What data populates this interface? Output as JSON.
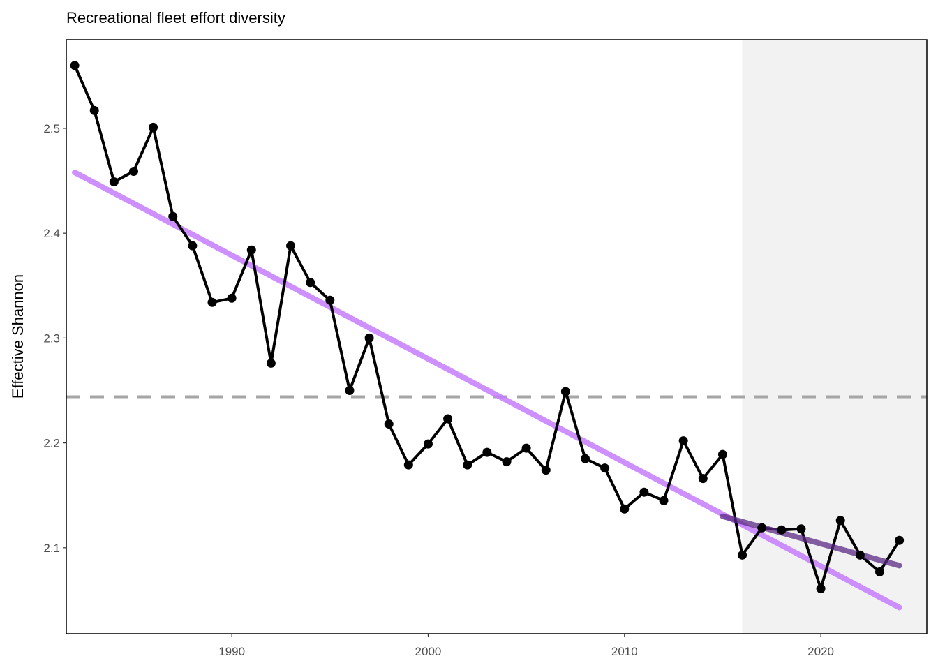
{
  "chart_data": {
    "type": "line",
    "title": "Recreational fleet effort diversity",
    "xlabel": "",
    "ylabel": "Effective Shannon",
    "xlim": [
      1981.57,
      2025.4
    ],
    "ylim": [
      2.018,
      2.5845
    ],
    "x_ticks": [
      1990,
      2000,
      2010,
      2020
    ],
    "y_ticks": [
      2.1,
      2.2,
      2.3,
      2.4,
      2.5
    ],
    "y_tick_labels": [
      "2.1",
      "2.2",
      "2.3",
      "2.4",
      "2.5"
    ],
    "x_tick_labels": [
      "1990",
      "2000",
      "2010",
      "2020"
    ],
    "grid": false,
    "x": [
      1982,
      1983,
      1984,
      1985,
      1986,
      1987,
      1988,
      1989,
      1990,
      1991,
      1992,
      1993,
      1994,
      1995,
      1996,
      1997,
      1998,
      1999,
      2000,
      2001,
      2002,
      2003,
      2004,
      2005,
      2006,
      2007,
      2008,
      2009,
      2010,
      2011,
      2012,
      2013,
      2014,
      2015,
      2016,
      2017,
      2018,
      2019,
      2020,
      2021,
      2022,
      2023,
      2024
    ],
    "series": [
      {
        "name": "Effective Shannon",
        "color": "#000000",
        "values": [
          2.56,
          2.517,
          2.449,
          2.459,
          2.501,
          2.416,
          2.388,
          2.334,
          2.338,
          2.384,
          2.276,
          2.388,
          2.353,
          2.336,
          2.25,
          2.3,
          2.218,
          2.179,
          2.199,
          2.223,
          2.179,
          2.191,
          2.182,
          2.195,
          2.174,
          2.249,
          2.185,
          2.176,
          2.137,
          2.153,
          2.145,
          2.202,
          2.166,
          2.189,
          2.093,
          2.119,
          2.117,
          2.118,
          2.061,
          2.126,
          2.093,
          2.077,
          2.107
        ]
      }
    ],
    "mean_line": {
      "value": 2.244,
      "color": "#a6a6a6",
      "style": "dashed"
    },
    "trend_full": {
      "x": [
        1982,
        2024
      ],
      "y": [
        2.458,
        2.043
      ],
      "color": "#c77cff"
    },
    "trend_recent": {
      "x": [
        2015,
        2024
      ],
      "y": [
        2.13,
        2.083
      ],
      "color": "#5b2a86"
    },
    "shaded_region": {
      "x_start": 2016,
      "x_end": 2025.4,
      "color": "#f2f2f2"
    }
  }
}
